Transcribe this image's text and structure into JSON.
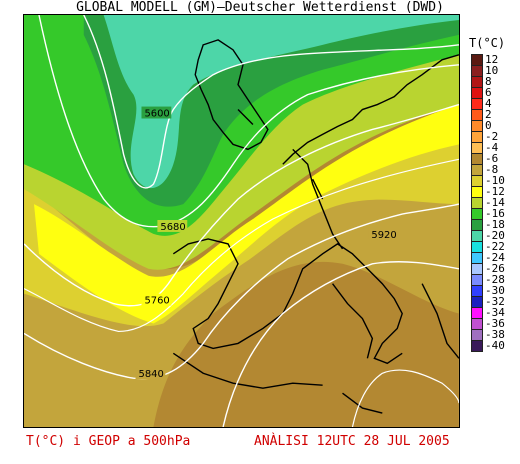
{
  "header": {
    "title": "GLOBAL MODELL (GM)—Deutscher Wetterdienst (DWD)"
  },
  "legend": {
    "title": "T(°C)",
    "entries": [
      {
        "label": "12",
        "color": "#5a1a12"
      },
      {
        "label": "10",
        "color": "#8a1f1f"
      },
      {
        "label": "8",
        "color": "#b01515"
      },
      {
        "label": "6",
        "color": "#dd1111"
      },
      {
        "label": "4",
        "color": "#ff2a1a"
      },
      {
        "label": "2",
        "color": "#ff5a1a"
      },
      {
        "label": "0",
        "color": "#ff8a2a"
      },
      {
        "label": "-2",
        "color": "#ffa43a"
      },
      {
        "label": "-4",
        "color": "#ffbf55"
      },
      {
        "label": "-6",
        "color": "#b38832"
      },
      {
        "label": "-8",
        "color": "#c3a53c"
      },
      {
        "label": "-10",
        "color": "#ddd030"
      },
      {
        "label": "-12",
        "color": "#ffff10"
      },
      {
        "label": "-14",
        "color": "#b9d430"
      },
      {
        "label": "-16",
        "color": "#35c92a"
      },
      {
        "label": "-18",
        "color": "#2aa040"
      },
      {
        "label": "-20",
        "color": "#4dd6a8"
      },
      {
        "label": "-22",
        "color": "#19e0e0"
      },
      {
        "label": "-24",
        "color": "#40c8ff"
      },
      {
        "label": "-26",
        "color": "#a9c8ff"
      },
      {
        "label": "-28",
        "color": "#7a8cff"
      },
      {
        "label": "-30",
        "color": "#3040ff"
      },
      {
        "label": "-32",
        "color": "#1a20c0"
      },
      {
        "label": "-34",
        "color": "#ff10ff"
      },
      {
        "label": "-36",
        "color": "#c050d0"
      },
      {
        "label": "-38",
        "color": "#a070c0"
      },
      {
        "label": "-40",
        "color": "#3a1a5a"
      }
    ]
  },
  "contours": [
    {
      "label": "5600"
    },
    {
      "label": "5680"
    },
    {
      "label": "5760"
    },
    {
      "label": "5840"
    },
    {
      "label": "5920"
    }
  ],
  "footer": {
    "left": "T(°C) i GEOP a 500hPa",
    "right": "ANÀLISI 12UTC 28 JUL 2005"
  }
}
